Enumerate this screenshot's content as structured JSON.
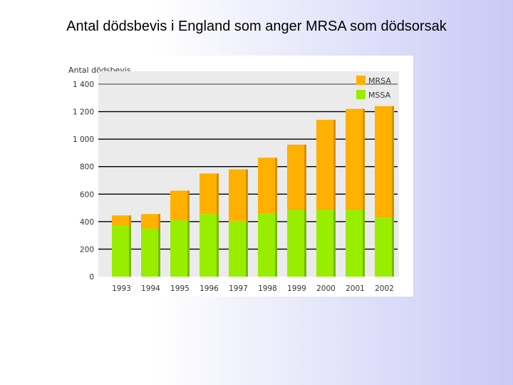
{
  "slide": {
    "title": "Antal dödsbevis i England som anger MRSA som dödsorsak"
  },
  "colors": {
    "mrsa": "#ffb000",
    "mssa": "#99ee00",
    "plot_background": "#ebebeb",
    "grid": "#000000"
  },
  "chart_data": {
    "type": "bar",
    "stacked": true,
    "ylabel": "Antal dödsbevis",
    "categories": [
      "1993",
      "1994",
      "1995",
      "1996",
      "1997",
      "1998",
      "1999",
      "2000",
      "2001",
      "2002"
    ],
    "series": [
      {
        "name": "MSSA",
        "values": [
          370,
          350,
          410,
          455,
          405,
          460,
          485,
          485,
          485,
          430
        ]
      },
      {
        "name": "MRSA",
        "values": [
          75,
          105,
          215,
          295,
          375,
          405,
          475,
          655,
          735,
          810
        ]
      }
    ],
    "ylim": [
      0,
      1400
    ],
    "yticks": [
      0,
      200,
      400,
      600,
      800,
      1000,
      1200,
      1400
    ],
    "ytick_labels": [
      "0",
      "200",
      "400",
      "600",
      "800",
      "1 000",
      "1 200",
      "1 400"
    ],
    "grid": true,
    "legend_position": "top-right",
    "legend_order": [
      "MRSA",
      "MSSA"
    ]
  }
}
